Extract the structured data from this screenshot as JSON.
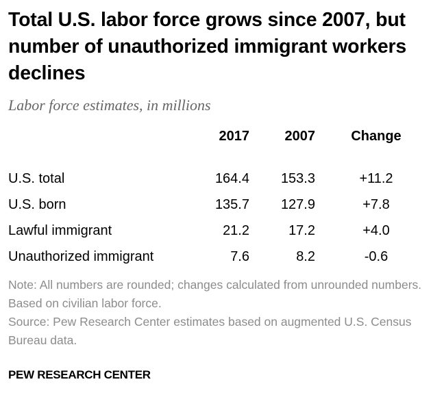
{
  "chart_data": {
    "type": "table",
    "title": "Total U.S. labor force grows since 2007, but number of unauthorized immigrant workers declines",
    "subtitle": "Labor force estimates, in millions",
    "columns": [
      "2017",
      "2007",
      "Change"
    ],
    "rows": [
      {
        "label": "U.S. total",
        "values": [
          "164.4",
          "153.3",
          "+11.2"
        ]
      },
      {
        "label": "U.S. born",
        "values": [
          "135.7",
          "127.9",
          "+7.8"
        ]
      },
      {
        "label": "Lawful immigrant",
        "values": [
          "21.2",
          "17.2",
          "+4.0"
        ]
      },
      {
        "label": "Unauthorized immigrant",
        "values": [
          "7.6",
          "8.2",
          "-0.6"
        ]
      }
    ],
    "note": "Note: All numbers are rounded; changes calculated from unrounded numbers. Based on civilian labor force.",
    "source": "Source: Pew Research Center estimates based on augmented U.S. Census Bureau data.",
    "branding": "PEW RESEARCH CENTER"
  }
}
